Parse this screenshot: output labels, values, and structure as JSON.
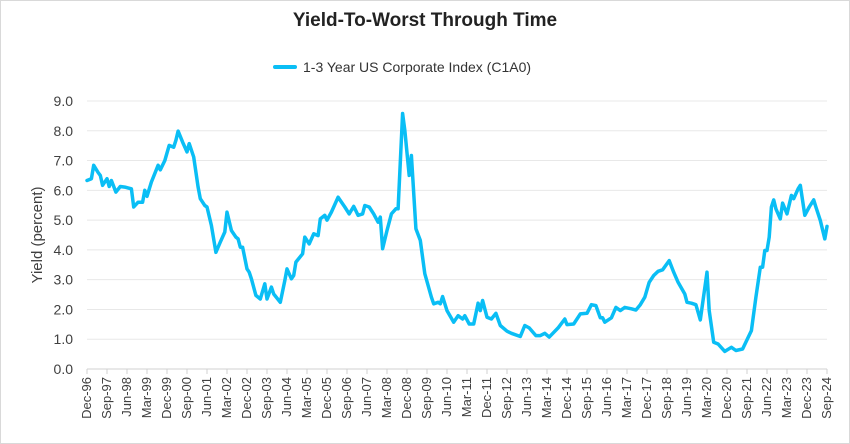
{
  "chart_data": {
    "type": "line",
    "title": "Yield-To-Worst Through Time",
    "xlabel": "",
    "ylabel": "Yield (percent)",
    "ylim": [
      0,
      9
    ],
    "yticks": [
      "0.0",
      "1.0",
      "2.0",
      "3.0",
      "4.0",
      "5.0",
      "6.0",
      "7.0",
      "8.0",
      "9.0"
    ],
    "xlim": [
      "1996-12",
      "2024-09"
    ],
    "xtick_labels": [
      "Dec-96",
      "Sep-97",
      "Jun-98",
      "Mar-99",
      "Dec-99",
      "Sep-00",
      "Jun-01",
      "Mar-02",
      "Dec-02",
      "Sep-03",
      "Jun-04",
      "Mar-05",
      "Dec-05",
      "Sep-06",
      "Jun-07",
      "Mar-08",
      "Dec-08",
      "Sep-09",
      "Jun-10",
      "Mar-11",
      "Dec-11",
      "Sep-12",
      "Jun-13",
      "Mar-14",
      "Dec-14",
      "Sep-15",
      "Jun-16",
      "Mar-17",
      "Dec-17",
      "Sep-18",
      "Jun-19",
      "Mar-20",
      "Dec-20",
      "Sep-21",
      "Jun-22",
      "Mar-23",
      "Dec-23",
      "Sep-24"
    ],
    "grid": "horizontal",
    "legend": "top-center",
    "series": [
      {
        "name": "1-3 Year US Corporate Index (C1A0)",
        "color": "#0ABEF5",
        "x": [
          "1996-12",
          "1997-02",
          "1997-03",
          "1997-05",
          "1997-06",
          "1997-07",
          "1997-09",
          "1997-10",
          "1997-11",
          "1998-01",
          "1998-03",
          "1998-05",
          "1998-08",
          "1998-09",
          "1998-11",
          "1999-01",
          "1999-02",
          "1999-03",
          "1999-05",
          "1999-08",
          "1999-09",
          "1999-11",
          "2000-01",
          "2000-03",
          "2000-04",
          "2000-05",
          "2000-07",
          "2000-09",
          "2000-10",
          "2000-12",
          "2001-02",
          "2001-03",
          "2001-05",
          "2001-06",
          "2001-08",
          "2001-10",
          "2001-12",
          "2002-02",
          "2002-03",
          "2002-05",
          "2002-07",
          "2002-08",
          "2002-09",
          "2002-10",
          "2002-12",
          "2003-01",
          "2003-02",
          "2003-04",
          "2003-06",
          "2003-08",
          "2003-09",
          "2003-11",
          "2003-12",
          "2004-03",
          "2004-05",
          "2004-06",
          "2004-08",
          "2004-09",
          "2004-10",
          "2005-01",
          "2005-02",
          "2005-04",
          "2005-06",
          "2005-08",
          "2005-09",
          "2005-11",
          "2005-12",
          "2006-02",
          "2006-03",
          "2006-05",
          "2006-08",
          "2006-10",
          "2006-12",
          "2007-02",
          "2007-04",
          "2007-05",
          "2007-07",
          "2007-09",
          "2007-11",
          "2007-12",
          "2008-01",
          "2008-03",
          "2008-05",
          "2008-07",
          "2008-08",
          "2008-10",
          "2008-11",
          "2009-01",
          "2009-02",
          "2009-04",
          "2009-06",
          "2009-08",
          "2009-11",
          "2009-12",
          "2010-02",
          "2010-03",
          "2010-04",
          "2010-06",
          "2010-09",
          "2010-11",
          "2011-01",
          "2011-02",
          "2011-04",
          "2011-06",
          "2011-08",
          "2011-09",
          "2011-10",
          "2011-12",
          "2012-02",
          "2012-04",
          "2012-06",
          "2012-09",
          "2012-11",
          "2013-03",
          "2013-05",
          "2013-07",
          "2013-10",
          "2013-12",
          "2014-02",
          "2014-04",
          "2014-06",
          "2014-08",
          "2014-11",
          "2014-12",
          "2015-03",
          "2015-06",
          "2015-09",
          "2015-11",
          "2016-01",
          "2016-03",
          "2016-04",
          "2016-05",
          "2016-08",
          "2016-10",
          "2016-12",
          "2017-02",
          "2017-05",
          "2017-07",
          "2017-09",
          "2017-11",
          "2018-01",
          "2018-03",
          "2018-05",
          "2018-07",
          "2018-10",
          "2018-12",
          "2019-02",
          "2019-05",
          "2019-06",
          "2019-08",
          "2019-10",
          "2019-12",
          "2020-03",
          "2020-04",
          "2020-06",
          "2020-08",
          "2020-11",
          "2021-02",
          "2021-04",
          "2021-07",
          "2021-11",
          "2022-01",
          "2022-03",
          "2022-04",
          "2022-05",
          "2022-06",
          "2022-07",
          "2022-08",
          "2022-09",
          "2022-10",
          "2022-12",
          "2023-01",
          "2023-03",
          "2023-05",
          "2023-06",
          "2023-08",
          "2023-09",
          "2023-11",
          "2024-01",
          "2024-03",
          "2024-04",
          "2024-06",
          "2024-08",
          "2024-09"
        ],
        "y": [
          6.33,
          6.39,
          6.84,
          6.6,
          6.5,
          6.17,
          6.39,
          6.13,
          6.33,
          5.94,
          6.13,
          6.11,
          6.05,
          5.44,
          5.6,
          5.6,
          6.0,
          5.8,
          6.28,
          6.84,
          6.69,
          7.0,
          7.51,
          7.45,
          7.68,
          7.99,
          7.62,
          7.29,
          7.57,
          7.12,
          6.11,
          5.72,
          5.49,
          5.44,
          4.82,
          3.92,
          4.26,
          4.6,
          5.27,
          4.65,
          4.43,
          4.37,
          4.09,
          4.09,
          3.36,
          3.25,
          3.03,
          2.47,
          2.35,
          2.86,
          2.35,
          2.75,
          2.52,
          2.24,
          2.97,
          3.36,
          3.03,
          3.14,
          3.59,
          3.87,
          4.43,
          4.2,
          4.54,
          4.48,
          5.04,
          5.16,
          5.0,
          5.27,
          5.44,
          5.77,
          5.44,
          5.21,
          5.46,
          5.16,
          5.21,
          5.49,
          5.44,
          5.21,
          4.93,
          5.1,
          4.04,
          4.65,
          5.21,
          5.38,
          5.38,
          8.58,
          8.02,
          6.5,
          7.17,
          4.71,
          4.32,
          3.2,
          2.41,
          2.19,
          2.24,
          2.19,
          2.43,
          1.96,
          1.57,
          1.79,
          1.68,
          1.79,
          1.51,
          1.51,
          2.21,
          1.96,
          2.3,
          1.74,
          1.68,
          1.87,
          1.46,
          1.27,
          1.2,
          1.09,
          1.46,
          1.38,
          1.12,
          1.12,
          1.2,
          1.07,
          1.23,
          1.38,
          1.68,
          1.49,
          1.51,
          1.85,
          1.87,
          2.16,
          2.13,
          1.72,
          1.72,
          1.57,
          1.72,
          2.07,
          1.96,
          2.07,
          2.02,
          1.98,
          2.16,
          2.41,
          2.91,
          3.14,
          3.28,
          3.33,
          3.64,
          3.25,
          2.91,
          2.52,
          2.24,
          2.21,
          2.16,
          1.65,
          3.25,
          1.96,
          0.9,
          0.84,
          0.59,
          0.73,
          0.62,
          0.67,
          1.29,
          2.41,
          3.42,
          3.42,
          3.98,
          3.98,
          4.43,
          5.44,
          5.68,
          5.38,
          5.04,
          5.57,
          5.21,
          5.83,
          5.72,
          6.05,
          6.17,
          5.16,
          5.44,
          5.68,
          5.44,
          4.99,
          4.37,
          4.79
        ]
      }
    ]
  }
}
